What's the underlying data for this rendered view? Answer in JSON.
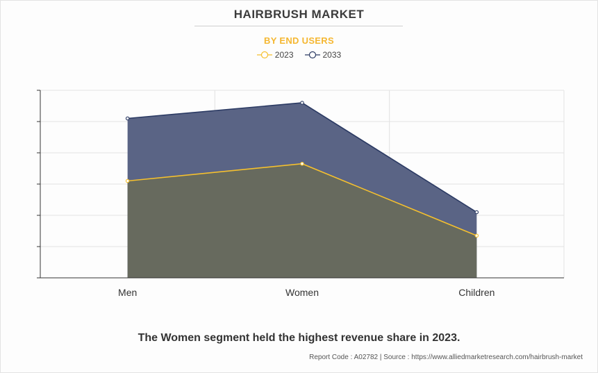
{
  "header": {
    "title": "HAIRBRUSH MARKET",
    "subtitle": "BY END USERS"
  },
  "footer": {
    "caption": "The Women segment held the highest revenue share in 2023.",
    "source": "Report Code : A02782  |  Source : https://www.alliedmarketresearch.com/hairbrush-market"
  },
  "colors": {
    "series_2023": "#f5c02e",
    "series_2033": "#2b3a63",
    "fill_2033": "#5a6485",
    "fill_2023": "#676a5e"
  },
  "chart_data": {
    "type": "area",
    "title": "HAIRBRUSH MARKET",
    "subtitle": "BY END USERS",
    "categories": [
      "Men",
      "Women",
      "Children"
    ],
    "series": [
      {
        "name": "2023",
        "values": [
          3.1,
          3.65,
          1.35
        ]
      },
      {
        "name": "2033",
        "values": [
          5.1,
          5.6,
          2.1
        ]
      }
    ],
    "ylim": [
      0,
      6
    ],
    "grid": true,
    "legend_position": "top-center",
    "y_tick_labels_shown": false
  }
}
